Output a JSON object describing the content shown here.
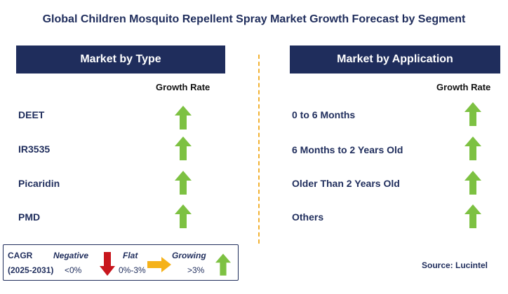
{
  "title": "Global Children Mosquito Repellent Spray Market Growth Forecast by Segment",
  "left_panel": {
    "header": "Market by Type",
    "growth_label": "Growth Rate",
    "items": [
      {
        "label": "DEET",
        "trend": "growing"
      },
      {
        "label": "IR3535",
        "trend": "growing"
      },
      {
        "label": "Picaridin",
        "trend": "growing"
      },
      {
        "label": "PMD",
        "trend": "growing"
      }
    ]
  },
  "right_panel": {
    "header": "Market by Application",
    "growth_label": "Growth Rate",
    "items": [
      {
        "label": "0 to 6 Months",
        "trend": "growing"
      },
      {
        "label": "6 Months to 2 Years Old",
        "trend": "growing"
      },
      {
        "label": "Older Than 2 Years Old",
        "trend": "growing"
      },
      {
        "label": "Others",
        "trend": "growing"
      }
    ]
  },
  "legend": {
    "cagr_label": "CAGR",
    "period": "(2025-2031)",
    "negative_label": "Negative",
    "negative_value": "<0%",
    "flat_label": "Flat",
    "flat_value": "0%-3%",
    "growing_label": "Growing",
    "growing_value": ">3%"
  },
  "source": "Source: Lucintel",
  "colors": {
    "navy": "#1f2d5c",
    "green_arrow": "#7dc142",
    "red_arrow": "#c8161d",
    "orange_arrow": "#f5b21a",
    "divider": "#f2b233"
  },
  "icons": {
    "growing": "green-up-arrow-icon",
    "negative": "red-down-arrow-icon",
    "flat": "orange-right-arrow-icon"
  }
}
